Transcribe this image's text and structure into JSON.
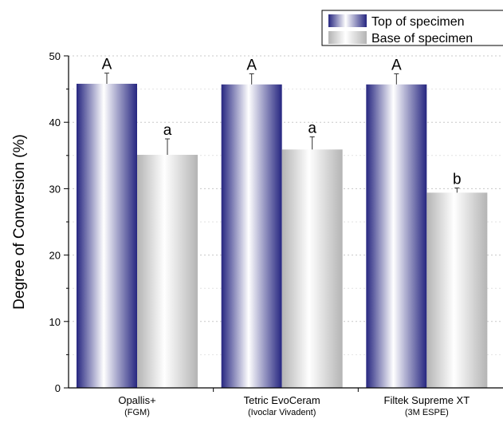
{
  "chart_data": {
    "type": "bar",
    "ylabel": "Degree of Conversion (%)",
    "xlabel": "",
    "ylim": [
      0,
      50
    ],
    "yticks": [
      0,
      10,
      20,
      30,
      40,
      50
    ],
    "grid": "horizontal dotted",
    "legend_position": "top-right",
    "categories": [
      {
        "name": "Opallis+",
        "sub": "(FGM)"
      },
      {
        "name": "Tetric EvoCeram",
        "sub": "(Ivoclar Vivadent)"
      },
      {
        "name": "Filtek Supreme XT",
        "sub": "(3M ESPE)"
      }
    ],
    "series": [
      {
        "name": "Top of specimen",
        "values": [
          45.8,
          45.7,
          45.7
        ],
        "errors": [
          1.6,
          1.6,
          1.6
        ],
        "letters": [
          "A",
          "A",
          "A"
        ],
        "color": "#2a2a8c"
      },
      {
        "name": "Base of specimen",
        "values": [
          35.1,
          35.9,
          29.4
        ],
        "errors": [
          2.4,
          1.9,
          0.7
        ],
        "letters": [
          "a",
          "a",
          "b"
        ],
        "color": "#bdbdbd"
      }
    ]
  }
}
